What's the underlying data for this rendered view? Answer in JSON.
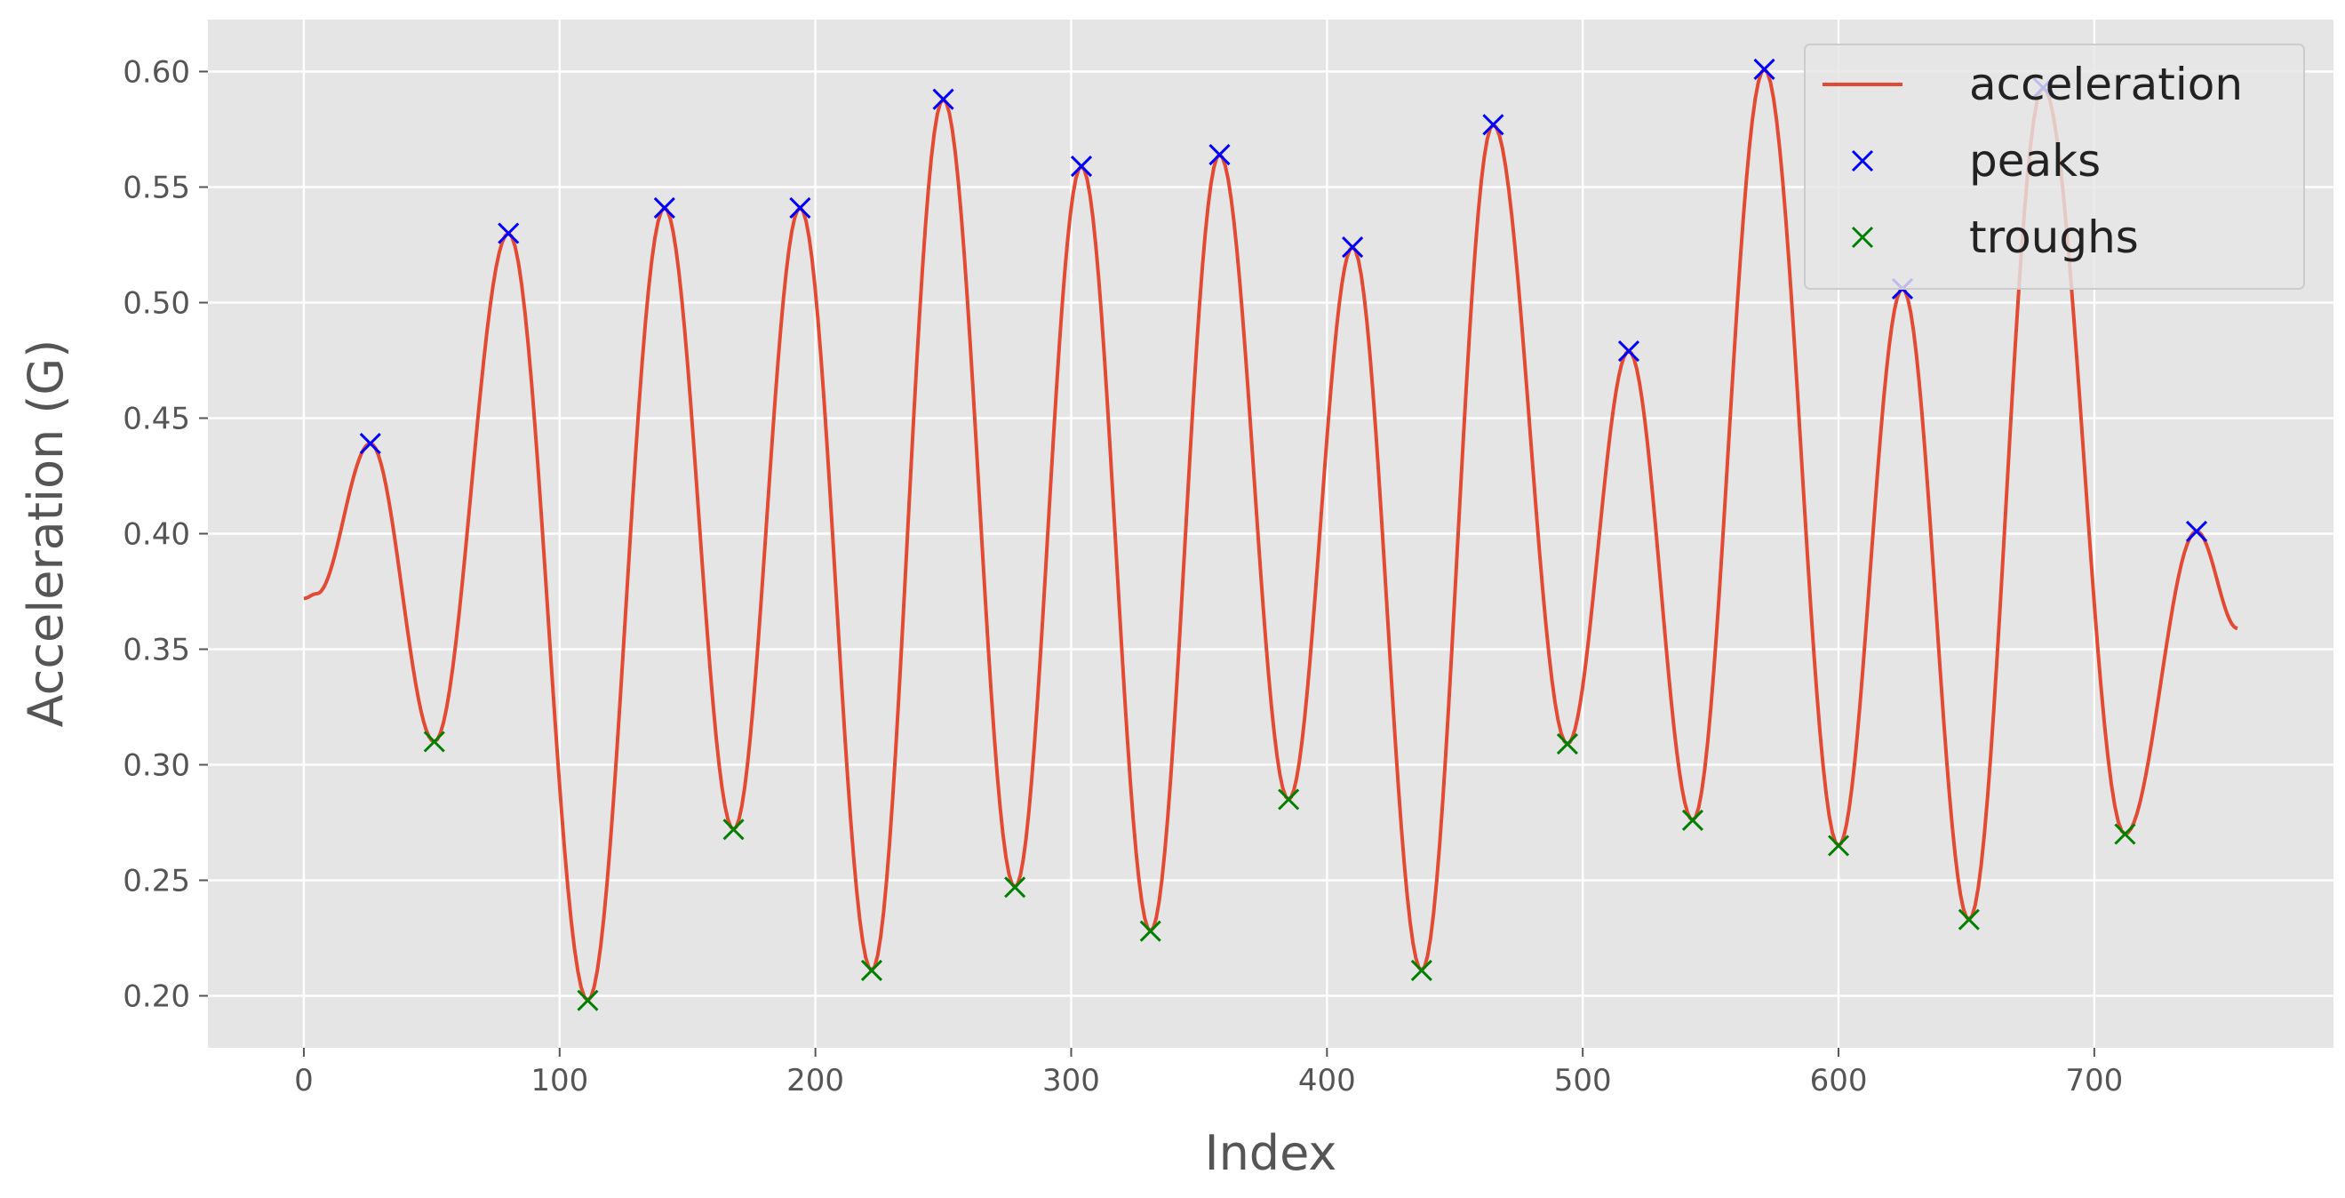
{
  "chart_data": {
    "type": "line",
    "title": "",
    "xlabel": "Index",
    "ylabel": "Acceleration (G)",
    "xlim": [
      -37.5,
      793.5
    ],
    "ylim": [
      0.1775,
      0.6225
    ],
    "xticks": [
      0,
      100,
      200,
      300,
      400,
      500,
      600,
      700
    ],
    "yticks": [
      0.2,
      0.25,
      0.3,
      0.35,
      0.4,
      0.45,
      0.5,
      0.55,
      0.6
    ],
    "grid": true,
    "legend_position": "top-right",
    "background_color": "#e5e5e5",
    "grid_color": "#ffffff",
    "series": [
      {
        "name": "acceleration",
        "marker": "line",
        "color": "#e24a33",
        "x": [
          0,
          5,
          26,
          51,
          80,
          111,
          141,
          168,
          194,
          222,
          250,
          278,
          304,
          331,
          358,
          385,
          410,
          437,
          465,
          494,
          518,
          543,
          571,
          600,
          625,
          651,
          680,
          712,
          740,
          756
        ],
        "y": [
          0.372,
          0.374,
          0.439,
          0.31,
          0.53,
          0.198,
          0.541,
          0.272,
          0.541,
          0.211,
          0.588,
          0.247,
          0.559,
          0.228,
          0.564,
          0.285,
          0.524,
          0.211,
          0.577,
          0.309,
          0.479,
          0.276,
          0.601,
          0.265,
          0.506,
          0.233,
          0.593,
          0.27,
          0.401,
          0.359
        ]
      },
      {
        "name": "peaks",
        "marker": "x",
        "color": "#0000ff",
        "x": [
          26,
          80,
          141,
          194,
          250,
          304,
          358,
          410,
          465,
          518,
          571,
          625,
          680,
          740
        ],
        "y": [
          0.439,
          0.53,
          0.541,
          0.541,
          0.588,
          0.559,
          0.564,
          0.524,
          0.577,
          0.479,
          0.601,
          0.506,
          0.593,
          0.401
        ]
      },
      {
        "name": "troughs",
        "marker": "x",
        "color": "#008000",
        "x": [
          51,
          111,
          168,
          222,
          278,
          331,
          385,
          437,
          494,
          543,
          600,
          651,
          712
        ],
        "y": [
          0.31,
          0.198,
          0.272,
          0.211,
          0.247,
          0.228,
          0.285,
          0.211,
          0.309,
          0.276,
          0.265,
          0.233,
          0.27
        ]
      }
    ]
  }
}
